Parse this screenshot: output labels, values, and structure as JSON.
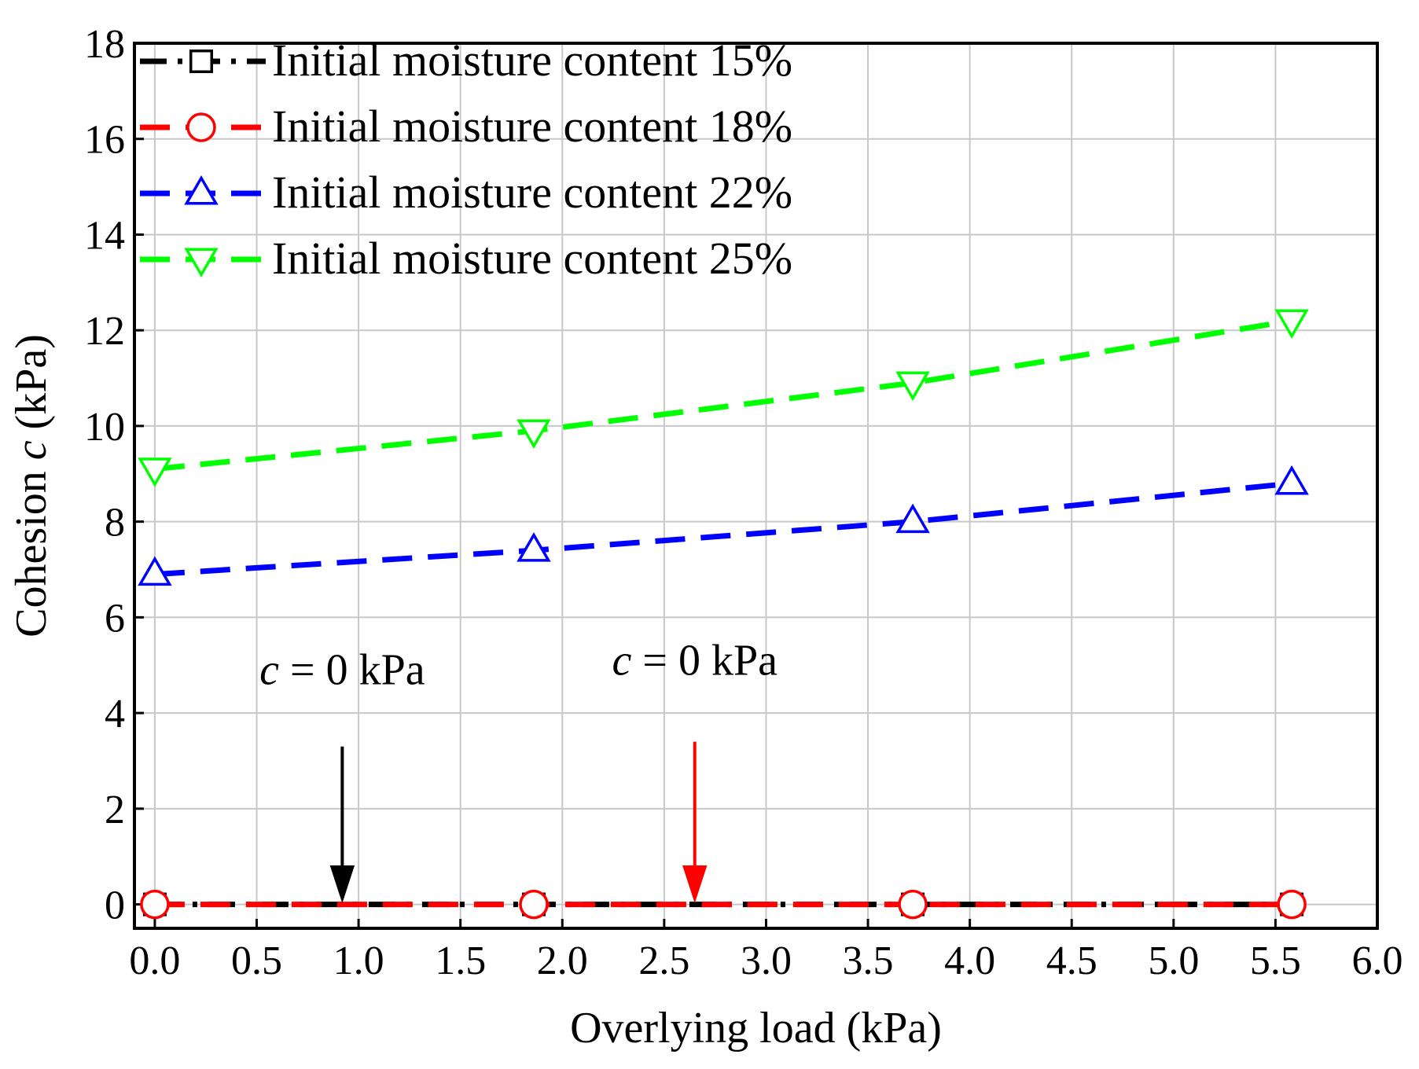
{
  "chart_data": {
    "type": "line",
    "title": "",
    "xlabel": "Overlying load (kPa)",
    "ylabel": {
      "prefix": "Cohesion ",
      "symbol": "c",
      "suffix": "  (kPa)"
    },
    "xlim": [
      -0.1,
      6.0
    ],
    "ylim": [
      -0.5,
      18
    ],
    "xticks": [
      0.0,
      0.5,
      1.0,
      1.5,
      2.0,
      2.5,
      3.0,
      3.5,
      4.0,
      4.5,
      5.0,
      5.5,
      6.0
    ],
    "xtick_labels": [
      "0.0",
      "0.5",
      "1.0",
      "1.5",
      "2.0",
      "2.5",
      "3.0",
      "3.5",
      "4.0",
      "4.5",
      "5.0",
      "5.5",
      "6.0"
    ],
    "yticks": [
      0,
      2,
      4,
      6,
      8,
      10,
      12,
      14,
      16,
      18
    ],
    "ytick_labels": [
      "0",
      "2",
      "4",
      "6",
      "8",
      "10",
      "12",
      "14",
      "16",
      "18"
    ],
    "grid": true,
    "legend_position": "top-left",
    "x": [
      0.0,
      1.86,
      3.72,
      5.58
    ],
    "series": [
      {
        "name": "Initial moisture content 15%",
        "color": "#000000",
        "marker": "square",
        "line_style": "dash-dot",
        "values": [
          0,
          0,
          0,
          0
        ]
      },
      {
        "name": "Initial moisture content 18%",
        "color": "#ff0000",
        "marker": "circle",
        "line_style": "dashed",
        "values": [
          0,
          0,
          0,
          0
        ]
      },
      {
        "name": "Initial moisture content 22%",
        "color": "#0000ff",
        "marker": "triangle-up",
        "line_style": "dashed",
        "values": [
          6.9,
          7.4,
          8.0,
          8.8
        ]
      },
      {
        "name": "Initial moisture content 25%",
        "color": "#00ff00",
        "marker": "triangle-down",
        "line_style": "dashed",
        "values": [
          9.1,
          9.9,
          10.9,
          12.2
        ]
      }
    ],
    "annotations": [
      {
        "symbol": "c",
        "text": " = 0 kPa",
        "color": "#000000",
        "arrow_x": 0.92,
        "arrow_from_y": 3.3,
        "arrow_to_y": 0.05,
        "label_x": 0.92,
        "label_y": 4.6
      },
      {
        "symbol": "c",
        "text": " = 0 kPa",
        "color": "#ff0000",
        "arrow_x": 2.65,
        "arrow_from_y": 3.4,
        "arrow_to_y": 0.05,
        "label_x": 2.65,
        "label_y": 4.8
      }
    ]
  }
}
